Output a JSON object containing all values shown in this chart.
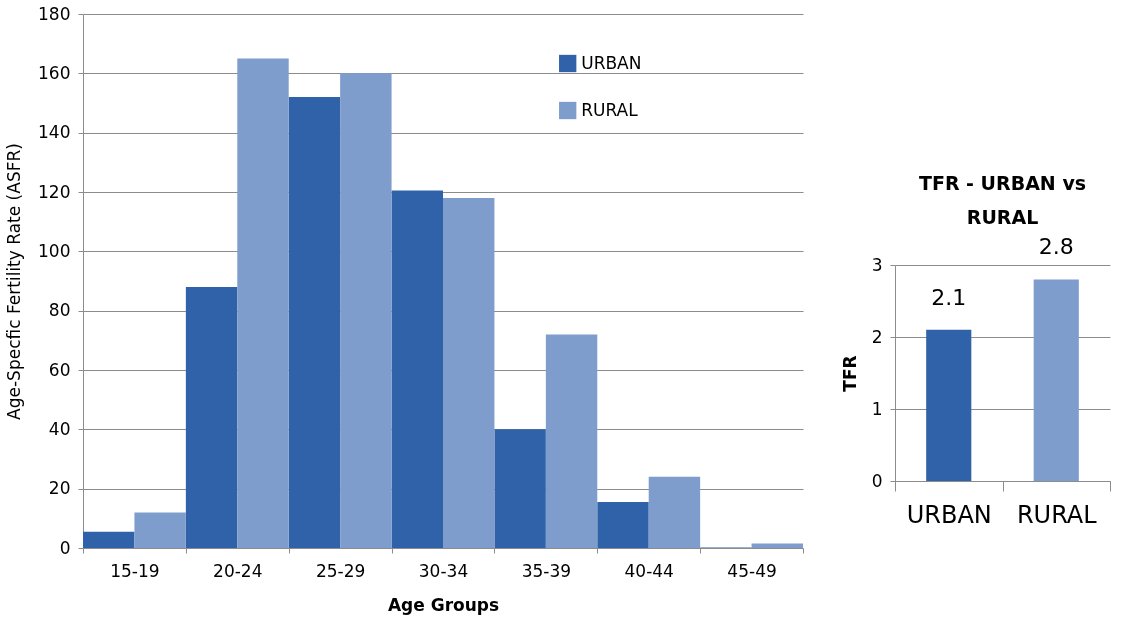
{
  "chart_data": [
    {
      "type": "bar",
      "categories": [
        "15-19",
        "20-24",
        "25-29",
        "30-34",
        "35-39",
        "40-44",
        "45-49"
      ],
      "xlabel": "Age Groups",
      "ylabel": "Age-Specfic Fertility Rate (ASFR)",
      "ylim": [
        0,
        180
      ],
      "yticks": [
        0,
        20,
        40,
        60,
        80,
        100,
        120,
        140,
        160,
        180
      ],
      "grid": "y",
      "legend": "top right",
      "series": [
        {
          "name": "URBAN",
          "color": "#2f62a8",
          "values": [
            5.5,
            88,
            152,
            120.5,
            40,
            15.5,
            0.2
          ]
        },
        {
          "name": "RURAL",
          "color": "#7f9dcc",
          "values": [
            12,
            165,
            160,
            118,
            72,
            24,
            1.5
          ]
        }
      ]
    },
    {
      "type": "bar",
      "title": "TFR - URBAN vs RURAL",
      "categories": [
        "URBAN",
        "RURAL"
      ],
      "ylabel": "TFR",
      "values": [
        2.1,
        2.8
      ],
      "colors": [
        "#2f62a8",
        "#7f9dcc"
      ],
      "ylim": [
        0,
        3
      ],
      "yticks": [
        0,
        1,
        2,
        3
      ],
      "grid": "y",
      "data_labels": true
    }
  ]
}
